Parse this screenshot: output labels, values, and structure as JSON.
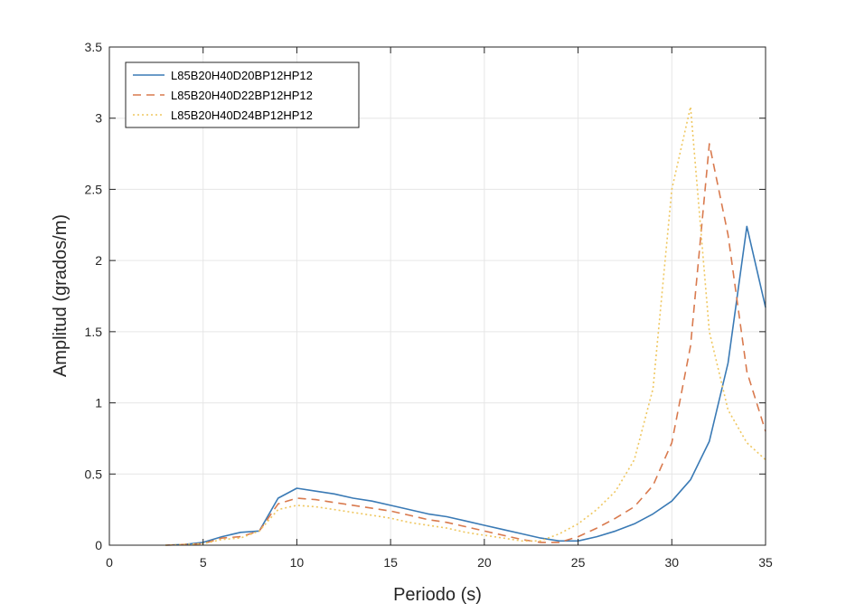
{
  "chart_data": {
    "type": "line",
    "title": "",
    "xlabel": "Periodo (s)",
    "ylabel": "Amplitud (grados/m)",
    "xlim": [
      0,
      35
    ],
    "ylim": [
      0,
      3.5
    ],
    "xticks": [
      0,
      5,
      10,
      15,
      20,
      25,
      30,
      35
    ],
    "yticks": [
      0,
      0.5,
      1,
      1.5,
      2,
      2.5,
      3,
      3.5
    ],
    "xtick_labels": [
      "0",
      "5",
      "10",
      "15",
      "20",
      "25",
      "30",
      "35"
    ],
    "ytick_labels": [
      "0",
      "0.5",
      "1",
      "1.5",
      "2",
      "2.5",
      "3",
      "3.5"
    ],
    "grid": true,
    "legend_position": "top-left",
    "series": [
      {
        "name": "L85B20H40D20BP12HP12",
        "color": "#3a7ab5",
        "style": "solid",
        "x": [
          3,
          4,
          5,
          6,
          7,
          8,
          9,
          10,
          11,
          12,
          13,
          14,
          15,
          16,
          17,
          18,
          19,
          20,
          21,
          22,
          23,
          24,
          25,
          26,
          27,
          28,
          29,
          30,
          31,
          32,
          33,
          34,
          35
        ],
        "y": [
          0,
          0.005,
          0.02,
          0.06,
          0.09,
          0.1,
          0.33,
          0.4,
          0.38,
          0.36,
          0.33,
          0.31,
          0.28,
          0.25,
          0.22,
          0.2,
          0.17,
          0.14,
          0.11,
          0.08,
          0.05,
          0.03,
          0.03,
          0.06,
          0.1,
          0.15,
          0.22,
          0.31,
          0.46,
          0.73,
          1.28,
          2.24,
          1.67
        ]
      },
      {
        "name": "L85B20H40D22BP12HP12",
        "color": "#d97a4e",
        "style": "dashed",
        "x": [
          3,
          4,
          5,
          6,
          7,
          8,
          9,
          10,
          11,
          12,
          13,
          14,
          15,
          16,
          17,
          18,
          19,
          20,
          21,
          22,
          23,
          24,
          25,
          26,
          27,
          28,
          29,
          30,
          31,
          32,
          33,
          34,
          35
        ],
        "y": [
          0,
          0.005,
          0.01,
          0.05,
          0.06,
          0.1,
          0.29,
          0.33,
          0.32,
          0.3,
          0.28,
          0.26,
          0.24,
          0.21,
          0.18,
          0.16,
          0.13,
          0.1,
          0.07,
          0.04,
          0.02,
          0.02,
          0.06,
          0.12,
          0.19,
          0.27,
          0.42,
          0.72,
          1.4,
          2.82,
          2.18,
          1.22,
          0.8
        ]
      },
      {
        "name": "L85B20H40D24BP12HP12",
        "color": "#efc760",
        "style": "dotted",
        "x": [
          3,
          4,
          5,
          6,
          7,
          8,
          9,
          10,
          11,
          12,
          13,
          14,
          15,
          16,
          17,
          18,
          19,
          20,
          21,
          22,
          23,
          24,
          25,
          26,
          27,
          28,
          29,
          30,
          31,
          32,
          33,
          34,
          35
        ],
        "y": [
          0,
          0.005,
          0.01,
          0.04,
          0.05,
          0.1,
          0.25,
          0.28,
          0.27,
          0.25,
          0.23,
          0.21,
          0.19,
          0.16,
          0.14,
          0.12,
          0.09,
          0.07,
          0.05,
          0.03,
          0.03,
          0.08,
          0.15,
          0.25,
          0.38,
          0.6,
          1.1,
          2.5,
          3.08,
          1.5,
          0.95,
          0.72,
          0.6
        ]
      }
    ]
  }
}
